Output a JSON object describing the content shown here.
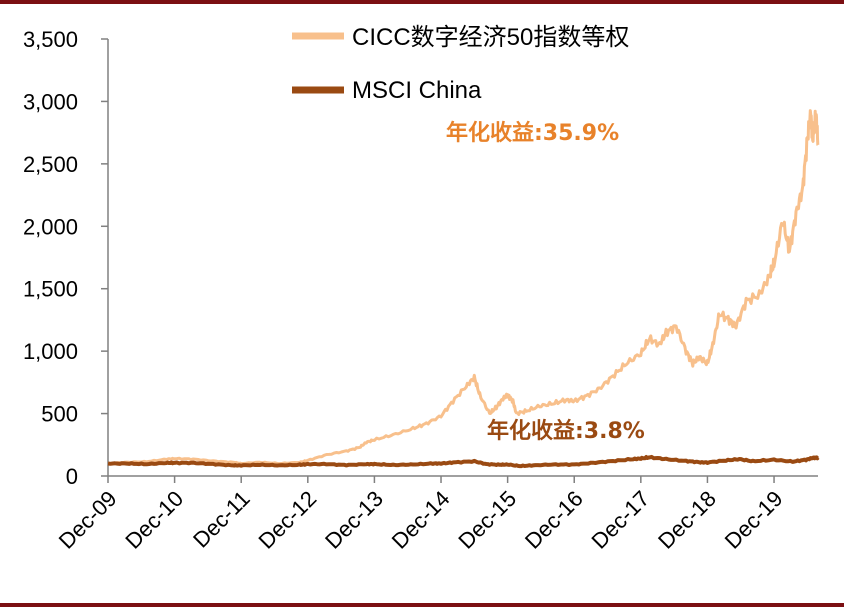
{
  "colors": {
    "border": "#7b0f12",
    "cicc": "#f8c08c",
    "msci": "#9a4a12",
    "annot_cicc": "#e8822a",
    "annot_msci": "#9a4a12",
    "axis": "#808080"
  },
  "chart_data": {
    "type": "line",
    "title": "",
    "xlabel": "",
    "ylabel": "",
    "ylim": [
      0,
      3500
    ],
    "yticks": [
      0,
      500,
      1000,
      1500,
      2000,
      2500,
      3000,
      3500
    ],
    "ytick_labels": [
      "0",
      "500",
      "1,000",
      "1,500",
      "2,000",
      "2,500",
      "3,000",
      "3,500"
    ],
    "xticks": [
      "Dec-09",
      "Dec-10",
      "Dec-11",
      "Dec-12",
      "Dec-13",
      "Dec-14",
      "Dec-15",
      "Dec-16",
      "Dec-17",
      "Dec-18",
      "Dec-19"
    ],
    "x_range": [
      2009.92,
      2020.58
    ],
    "grid": false,
    "legend_position": "top",
    "series": [
      {
        "name": "CICC数字经济50指数等权",
        "points": [
          [
            2009.92,
            100
          ],
          [
            2010.2,
            110
          ],
          [
            2010.5,
            115
          ],
          [
            2010.8,
            135
          ],
          [
            2010.92,
            140
          ],
          [
            2011.2,
            135
          ],
          [
            2011.5,
            120
          ],
          [
            2011.8,
            110
          ],
          [
            2011.92,
            100
          ],
          [
            2012.2,
            110
          ],
          [
            2012.5,
            100
          ],
          [
            2012.8,
            110
          ],
          [
            2012.92,
            125
          ],
          [
            2013.2,
            170
          ],
          [
            2013.5,
            200
          ],
          [
            2013.7,
            230
          ],
          [
            2013.8,
            270
          ],
          [
            2013.92,
            290
          ],
          [
            2014.2,
            330
          ],
          [
            2014.5,
            380
          ],
          [
            2014.7,
            420
          ],
          [
            2014.92,
            480
          ],
          [
            2015.1,
            600
          ],
          [
            2015.3,
            720
          ],
          [
            2015.42,
            790
          ],
          [
            2015.5,
            650
          ],
          [
            2015.65,
            500
          ],
          [
            2015.75,
            550
          ],
          [
            2015.85,
            620
          ],
          [
            2015.92,
            650
          ],
          [
            2016.0,
            600
          ],
          [
            2016.05,
            500
          ],
          [
            2016.2,
            520
          ],
          [
            2016.4,
            560
          ],
          [
            2016.6,
            580
          ],
          [
            2016.8,
            610
          ],
          [
            2016.92,
            600
          ],
          [
            2017.1,
            640
          ],
          [
            2017.3,
            700
          ],
          [
            2017.5,
            800
          ],
          [
            2017.7,
            900
          ],
          [
            2017.92,
            980
          ],
          [
            2018.05,
            1100
          ],
          [
            2018.2,
            1050
          ],
          [
            2018.3,
            1150
          ],
          [
            2018.45,
            1200
          ],
          [
            2018.6,
            1000
          ],
          [
            2018.7,
            900
          ],
          [
            2018.8,
            950
          ],
          [
            2018.92,
            900
          ],
          [
            2019.0,
            1050
          ],
          [
            2019.1,
            1300
          ],
          [
            2019.25,
            1250
          ],
          [
            2019.35,
            1200
          ],
          [
            2019.5,
            1400
          ],
          [
            2019.7,
            1450
          ],
          [
            2019.85,
            1600
          ],
          [
            2019.92,
            1700
          ],
          [
            2020.05,
            2050
          ],
          [
            2020.15,
            1800
          ],
          [
            2020.25,
            2100
          ],
          [
            2020.35,
            2300
          ],
          [
            2020.42,
            2700
          ],
          [
            2020.47,
            2900
          ],
          [
            2020.5,
            2700
          ],
          [
            2020.55,
            2900
          ],
          [
            2020.58,
            2650
          ]
        ]
      },
      {
        "name": "MSCI China",
        "points": [
          [
            2009.92,
            100
          ],
          [
            2010.2,
            100
          ],
          [
            2010.5,
            95
          ],
          [
            2010.8,
            105
          ],
          [
            2010.92,
            105
          ],
          [
            2011.2,
            105
          ],
          [
            2011.5,
            95
          ],
          [
            2011.8,
            85
          ],
          [
            2011.92,
            85
          ],
          [
            2012.2,
            90
          ],
          [
            2012.5,
            85
          ],
          [
            2012.8,
            90
          ],
          [
            2012.92,
            95
          ],
          [
            2013.2,
            95
          ],
          [
            2013.5,
            88
          ],
          [
            2013.8,
            95
          ],
          [
            2013.92,
            95
          ],
          [
            2014.2,
            88
          ],
          [
            2014.5,
            92
          ],
          [
            2014.8,
            100
          ],
          [
            2014.92,
            100
          ],
          [
            2015.1,
            108
          ],
          [
            2015.42,
            118
          ],
          [
            2015.6,
            95
          ],
          [
            2015.8,
            90
          ],
          [
            2015.92,
            92
          ],
          [
            2016.1,
            80
          ],
          [
            2016.3,
            85
          ],
          [
            2016.6,
            92
          ],
          [
            2016.92,
            92
          ],
          [
            2017.2,
            105
          ],
          [
            2017.5,
            120
          ],
          [
            2017.8,
            135
          ],
          [
            2017.92,
            140
          ],
          [
            2018.05,
            150
          ],
          [
            2018.3,
            135
          ],
          [
            2018.6,
            120
          ],
          [
            2018.8,
            110
          ],
          [
            2018.92,
            108
          ],
          [
            2019.2,
            125
          ],
          [
            2019.4,
            135
          ],
          [
            2019.6,
            118
          ],
          [
            2019.92,
            130
          ],
          [
            2020.2,
            115
          ],
          [
            2020.4,
            130
          ],
          [
            2020.5,
            145
          ],
          [
            2020.58,
            148
          ]
        ]
      }
    ],
    "legend": [
      "CICC数字经济50指数等权",
      "MSCI China"
    ],
    "annotations": [
      {
        "text": "年化收益:35.9%",
        "series": "CICC数字经济50指数等权"
      },
      {
        "text": "年化收益:3.8%",
        "series": "MSCI China"
      }
    ]
  }
}
